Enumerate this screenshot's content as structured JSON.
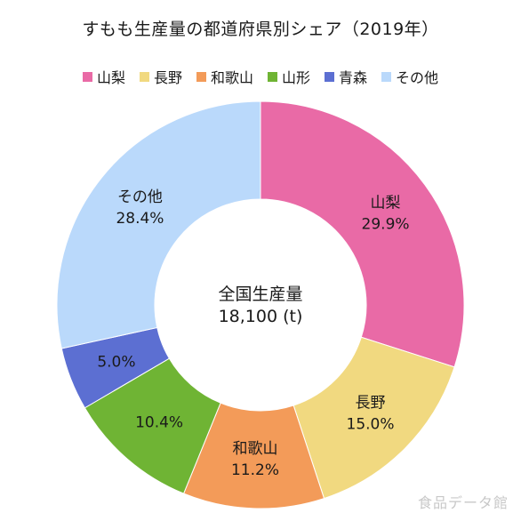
{
  "title": "すもも生産量の都道府県別シェア（2019年）",
  "center": {
    "title": "全国生産量",
    "value": "18,100 (t)"
  },
  "watermark": "食品データ館",
  "chart_data": {
    "type": "pie",
    "donut": true,
    "title": "すもも生産量の都道府県別シェア（2019年）",
    "legend_position": "top",
    "total_label": "全国生産量",
    "total_value": 18100,
    "total_unit": "t",
    "categories": [
      "山梨",
      "長野",
      "和歌山",
      "山形",
      "青森",
      "その他"
    ],
    "values": [
      29.9,
      15.0,
      11.2,
      10.4,
      5.0,
      28.4
    ],
    "slice_labels": [
      "山梨",
      "長野",
      "和歌山",
      "",
      "",
      "その他"
    ],
    "value_labels": [
      "29.9%",
      "15.0%",
      "11.2%",
      "10.4%",
      "5.0%",
      "28.4%"
    ],
    "colors": [
      "#e96aa6",
      "#f1d980",
      "#f39b59",
      "#6fb434",
      "#5c6fd2",
      "#bad9fb"
    ]
  }
}
